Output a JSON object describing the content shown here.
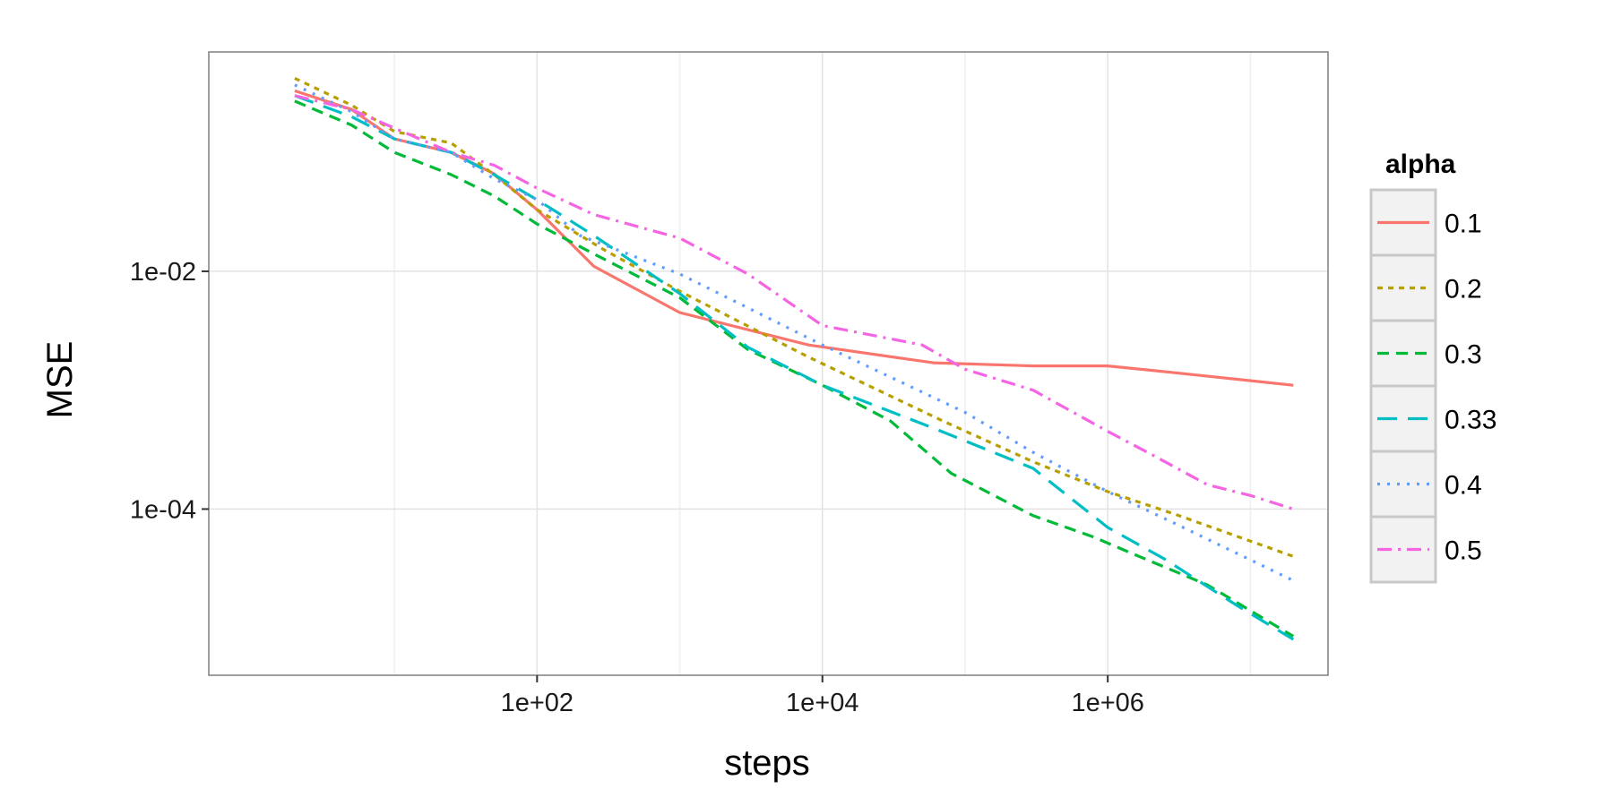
{
  "chart_data": {
    "type": "line",
    "title": "",
    "xlabel": "steps",
    "ylabel": "MSE",
    "x_scale": "log10",
    "y_scale": "log10",
    "xlim": [
      0.5,
      35000000
    ],
    "ylim": [
      4e-06,
      0.7
    ],
    "x_ticks": [
      100,
      10000,
      1000000
    ],
    "x_tick_labels": [
      "1e+02",
      "1e+04",
      "1e+06"
    ],
    "y_ticks": [
      0.01,
      0.0001
    ],
    "y_tick_labels": [
      "1e-02",
      "1e-04"
    ],
    "grid": true,
    "legend": {
      "title": "alpha",
      "placement": "right"
    },
    "series": [
      {
        "name": "0.1",
        "color": "#F8766D",
        "dash": "solid",
        "x": [
          2,
          5,
          10,
          25,
          50,
          100,
          250,
          1000,
          8000,
          60000,
          300000,
          1000000,
          3000000,
          20000000
        ],
        "y": [
          0.33,
          0.23,
          0.13,
          0.1,
          0.066,
          0.033,
          0.011,
          0.0045,
          0.0024,
          0.0017,
          0.0016,
          0.0016,
          0.0014,
          0.0011
        ]
      },
      {
        "name": "0.2",
        "color": "#B79F00",
        "dash": "short",
        "x": [
          2,
          5,
          10,
          25,
          50,
          100,
          300,
          1000,
          8000,
          70000,
          300000,
          1000000,
          3000000,
          20000000
        ],
        "y": [
          0.42,
          0.25,
          0.15,
          0.12,
          0.065,
          0.033,
          0.015,
          0.0068,
          0.0019,
          0.00055,
          0.00025,
          0.00014,
          9e-05,
          4e-05
        ]
      },
      {
        "name": "0.3",
        "color": "#00BA38",
        "dash": "medium",
        "x": [
          2,
          5,
          10,
          25,
          50,
          100,
          250,
          1000,
          3000,
          10000,
          30000,
          80000,
          300000,
          800000,
          1500000,
          5000000,
          20000000
        ],
        "y": [
          0.27,
          0.17,
          0.1,
          0.065,
          0.043,
          0.025,
          0.014,
          0.006,
          0.0022,
          0.0011,
          0.00055,
          0.0002,
          8.8e-05,
          5.8e-05,
          4.2e-05,
          2.3e-05,
          8.5e-06
        ]
      },
      {
        "name": "0.33",
        "color": "#00BFC4",
        "dash": "long",
        "x": [
          2,
          5,
          10,
          25,
          50,
          100,
          250,
          1000,
          3000,
          10000,
          60000,
          300000,
          1000000,
          2500000,
          8000000,
          20000000
        ],
        "y": [
          0.3,
          0.2,
          0.13,
          0.1,
          0.065,
          0.04,
          0.02,
          0.0065,
          0.0023,
          0.0011,
          0.00048,
          0.00022,
          7e-05,
          3.8e-05,
          1.55e-05,
          8e-06
        ]
      },
      {
        "name": "0.4",
        "color": "#619CFF",
        "dash": "dotted",
        "x": [
          2,
          5,
          10,
          25,
          50,
          100,
          200,
          1000,
          10000,
          100000,
          300000,
          1000000,
          3000000,
          20000000
        ],
        "y": [
          0.37,
          0.22,
          0.13,
          0.1,
          0.06,
          0.04,
          0.02,
          0.0095,
          0.0024,
          0.00065,
          0.0003,
          0.00014,
          7.5e-05,
          2.5e-05
        ]
      },
      {
        "name": "0.5",
        "color": "#F564E3",
        "dash": "dashdot",
        "x": [
          2,
          5,
          10,
          25,
          50,
          100,
          250,
          1000,
          3000,
          10000,
          50000,
          100000,
          300000,
          1000000,
          2000000,
          5000000,
          10000000,
          20000000
        ],
        "y": [
          0.3,
          0.23,
          0.16,
          0.1,
          0.078,
          0.05,
          0.03,
          0.019,
          0.0095,
          0.0035,
          0.0024,
          0.0015,
          0.001,
          0.00045,
          0.00029,
          0.00016,
          0.00013,
          0.0001
        ]
      }
    ]
  }
}
